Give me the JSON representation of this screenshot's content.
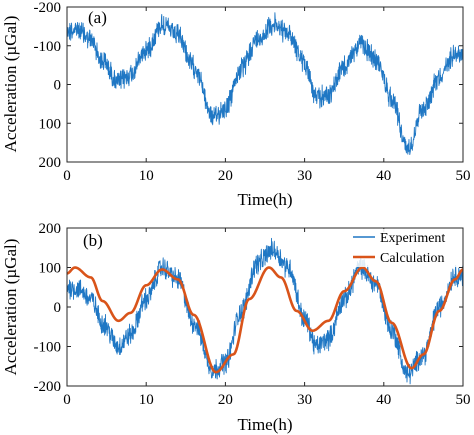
{
  "colors": {
    "experiment": "#1f77c4",
    "calculation": "#d9541a",
    "frame": "#262626",
    "background": "#ffffff"
  },
  "chart_data": [
    {
      "type": "line",
      "panel_label": "(a)",
      "xlabel": "Time(h)",
      "ylabel": "Acceleration (µGal)",
      "xlim": [
        0,
        50
      ],
      "ylim": [
        -200,
        200
      ],
      "y_reversed": true,
      "grid": false,
      "x_ticks": [
        "0",
        "10",
        "20",
        "30",
        "40",
        "50"
      ],
      "y_ticks": [
        "-200",
        "-100",
        "0",
        "100",
        "200"
      ],
      "series": [
        {
          "x": [
            0,
            1.5,
            3,
            4.5,
            6.5,
            8,
            10,
            12,
            14,
            16,
            18.5,
            20,
            22,
            24,
            26,
            28,
            30,
            31.5,
            33,
            35,
            37,
            39,
            41,
            43,
            45,
            47,
            49,
            50
          ],
          "values": [
            -140,
            -140,
            -115,
            -60,
            -5,
            -25,
            -90,
            -155,
            -125,
            -45,
            85,
            60,
            -40,
            -115,
            -155,
            -130,
            -55,
            35,
            25,
            -45,
            -105,
            -65,
            35,
            165,
            60,
            -20,
            -80,
            -80
          ],
          "noise_amplitude": 22
        }
      ]
    },
    {
      "type": "line",
      "panel_label": "(b)",
      "xlabel": "Time(h)",
      "ylabel": "Acceleration (µGal)",
      "xlim": [
        0,
        50
      ],
      "ylim": [
        -200,
        200
      ],
      "grid": false,
      "legend_position": "top-right",
      "x_ticks": [
        "0",
        "10",
        "20",
        "30",
        "40",
        "50"
      ],
      "y_ticks": [
        "200",
        "100",
        "0",
        "-100",
        "-200"
      ],
      "series": [
        {
          "name": "Experiment",
          "x": [
            0,
            1.5,
            3,
            4.5,
            6.5,
            8,
            10,
            12,
            14,
            16,
            18.5,
            20,
            22,
            24,
            26,
            28,
            30,
            31.5,
            33,
            35,
            37,
            39,
            41,
            43,
            45,
            47,
            49,
            50
          ],
          "values": [
            50,
            45,
            20,
            -40,
            -100,
            -70,
            20,
            100,
            70,
            -40,
            -160,
            -140,
            -10,
            110,
            145,
            100,
            -30,
            -100,
            -80,
            20,
            100,
            60,
            -60,
            -170,
            -120,
            0,
            80,
            80
          ],
          "noise_amplitude": 22
        },
        {
          "name": "Calculation",
          "x": [
            0,
            1,
            3,
            4.5,
            6.5,
            8,
            10,
            12,
            14,
            16,
            18.8,
            21,
            23,
            25.5,
            27,
            29,
            31,
            33,
            35,
            37.3,
            39,
            41,
            43.5,
            45,
            47,
            49,
            50
          ],
          "values": [
            85,
            100,
            75,
            15,
            -35,
            -15,
            55,
            95,
            70,
            -20,
            -165,
            -120,
            20,
            100,
            75,
            -10,
            -60,
            -35,
            40,
            100,
            65,
            -40,
            -155,
            -120,
            -10,
            70,
            95
          ]
        }
      ]
    }
  ]
}
